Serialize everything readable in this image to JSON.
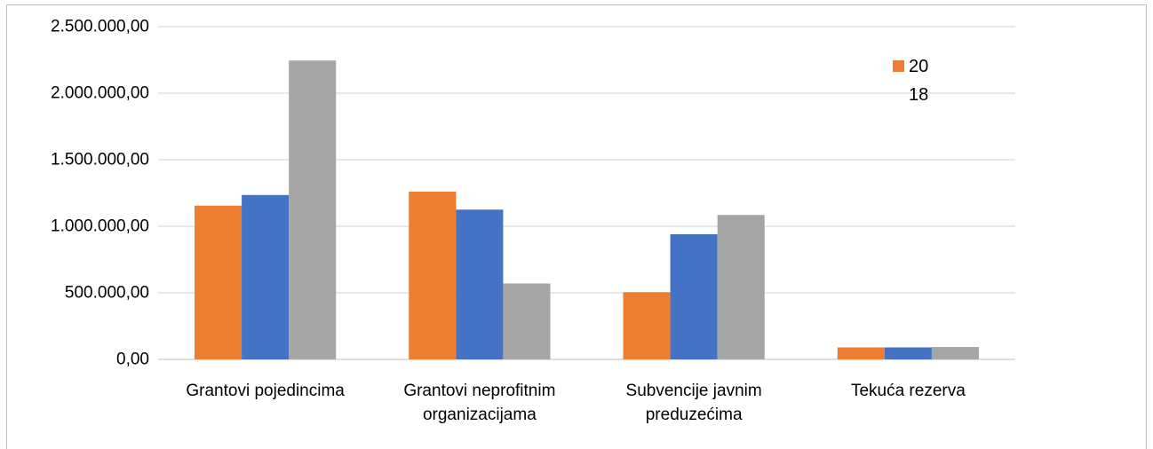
{
  "chart_data": {
    "type": "bar",
    "categories": [
      "Grantovi pojedincima",
      "Grantovi neprofitnim organizacijama",
      "Subvencije javnim preduzećima",
      "Tekuća rezerva"
    ],
    "series": [
      {
        "name": "2018",
        "color": "#ed7d31",
        "values": [
          1155000,
          1260000,
          505000,
          90000
        ]
      },
      {
        "color": "#4472c4",
        "values": [
          1235000,
          1125000,
          940000,
          90000
        ]
      },
      {
        "color": "#a5a5a5",
        "values": [
          2245000,
          570000,
          1085000,
          93000
        ]
      }
    ],
    "ylim": [
      0,
      2500000
    ],
    "yticks": [
      {
        "value": 0,
        "label": "0,00"
      },
      {
        "value": 500000,
        "label": "500.000,00"
      },
      {
        "value": 1000000,
        "label": "1.000.000,00"
      },
      {
        "value": 1500000,
        "label": "1.500.000,00"
      },
      {
        "value": 2000000,
        "label": "2.000.000,00"
      },
      {
        "value": 2500000,
        "label": "2.500.000,00"
      }
    ],
    "grid": true,
    "legend": "top-right"
  }
}
